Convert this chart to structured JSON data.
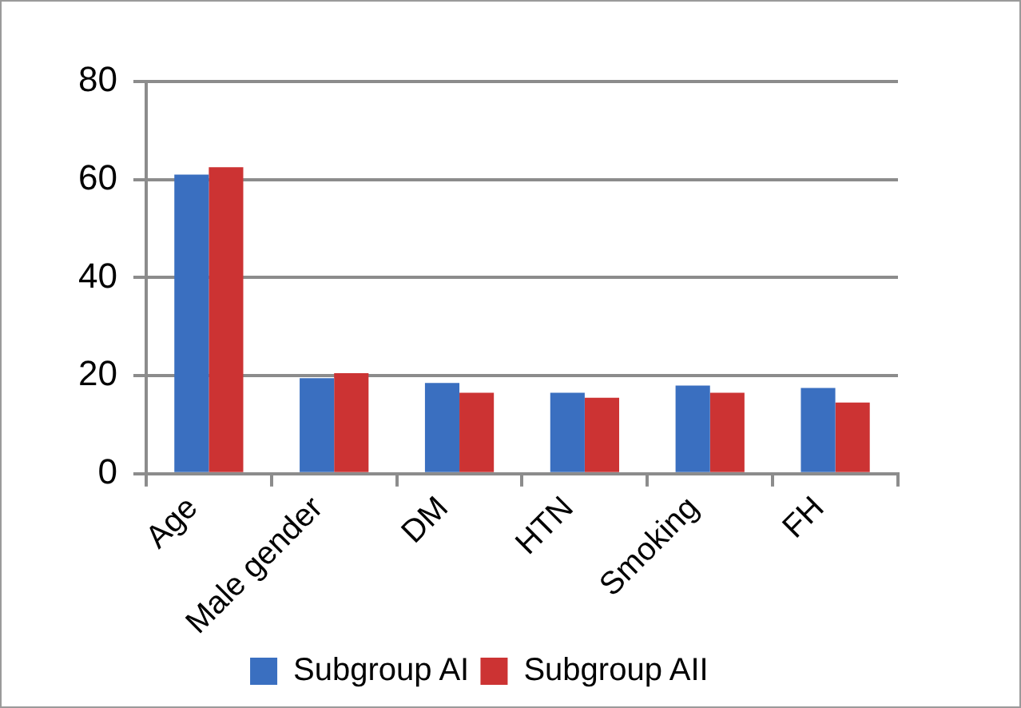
{
  "chart_data": {
    "type": "bar",
    "categories": [
      "Age",
      "Male gender",
      "DM",
      "HTN",
      "Smoking",
      "FH"
    ],
    "series": [
      {
        "name": "Subgroup AI",
        "color": "#3a6fc0",
        "values": [
          61,
          19.5,
          18.5,
          16.5,
          18,
          17.5
        ]
      },
      {
        "name": "Subgroup AII",
        "color": "#cc3333",
        "values": [
          62.5,
          20.5,
          16.5,
          15.5,
          16.5,
          14.5
        ]
      }
    ],
    "ylim": [
      0,
      80
    ],
    "yticks": [
      0,
      20,
      40,
      60,
      80
    ],
    "grid": "y",
    "legend": "bottom"
  }
}
